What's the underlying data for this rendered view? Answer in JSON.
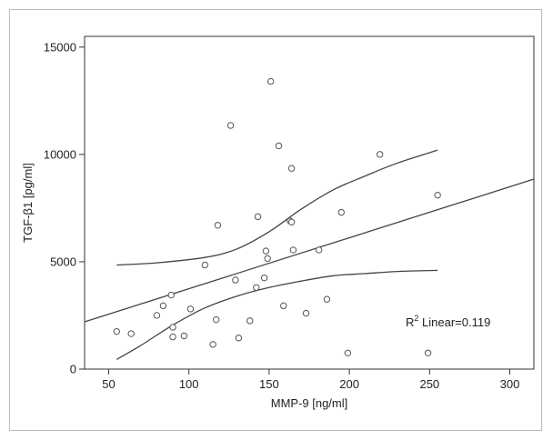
{
  "chart_data": {
    "type": "scatter",
    "title": "",
    "xlabel": "MMP-9 [ng/ml]",
    "ylabel": "TGF-β1 [pg/ml]",
    "xlim": [
      35,
      315
    ],
    "ylim": [
      0,
      15500
    ],
    "xticks": [
      50,
      100,
      150,
      200,
      250,
      300
    ],
    "yticks": [
      0,
      5000,
      10000,
      15000
    ],
    "grid": false,
    "points": [
      {
        "x": 55,
        "y": 1750
      },
      {
        "x": 64,
        "y": 1650
      },
      {
        "x": 80,
        "y": 2500
      },
      {
        "x": 84,
        "y": 2950
      },
      {
        "x": 89,
        "y": 3450
      },
      {
        "x": 90,
        "y": 1950
      },
      {
        "x": 90,
        "y": 1500
      },
      {
        "x": 97,
        "y": 1550
      },
      {
        "x": 101,
        "y": 2800
      },
      {
        "x": 110,
        "y": 4850
      },
      {
        "x": 115,
        "y": 1150
      },
      {
        "x": 117,
        "y": 2300
      },
      {
        "x": 118,
        "y": 6700
      },
      {
        "x": 126,
        "y": 11350
      },
      {
        "x": 129,
        "y": 4150
      },
      {
        "x": 131,
        "y": 1450
      },
      {
        "x": 138,
        "y": 2250
      },
      {
        "x": 142,
        "y": 3800
      },
      {
        "x": 143,
        "y": 7100
      },
      {
        "x": 147,
        "y": 4250
      },
      {
        "x": 148,
        "y": 5500
      },
      {
        "x": 149,
        "y": 5150
      },
      {
        "x": 151,
        "y": 13400
      },
      {
        "x": 156,
        "y": 10400
      },
      {
        "x": 159,
        "y": 2950
      },
      {
        "x": 163,
        "y": 6900
      },
      {
        "x": 164,
        "y": 6850
      },
      {
        "x": 164,
        "y": 9350
      },
      {
        "x": 165,
        "y": 5550
      },
      {
        "x": 173,
        "y": 2600
      },
      {
        "x": 181,
        "y": 5550
      },
      {
        "x": 186,
        "y": 3250
      },
      {
        "x": 195,
        "y": 7300
      },
      {
        "x": 199,
        "y": 750
      },
      {
        "x": 219,
        "y": 10000
      },
      {
        "x": 249,
        "y": 750
      },
      {
        "x": 255,
        "y": 8100
      }
    ],
    "fit_line": {
      "x": [
        35,
        315
      ],
      "y": [
        2200,
        8850
      ]
    },
    "ci_upper": {
      "x": [
        55,
        80,
        110,
        130,
        150,
        170,
        190,
        210,
        230,
        255
      ],
      "y": [
        4850,
        4950,
        5200,
        5600,
        6400,
        7450,
        8350,
        9000,
        9600,
        10200
      ]
    },
    "ci_lower": {
      "x": [
        55,
        70,
        90,
        110,
        130,
        150,
        170,
        190,
        210,
        230,
        255
      ],
      "y": [
        450,
        1100,
        2050,
        2850,
        3400,
        3800,
        4100,
        4350,
        4450,
        4550,
        4600
      ]
    },
    "annotation": {
      "main": "R",
      "sup": "2",
      "rest": " Linear=0.119"
    }
  }
}
